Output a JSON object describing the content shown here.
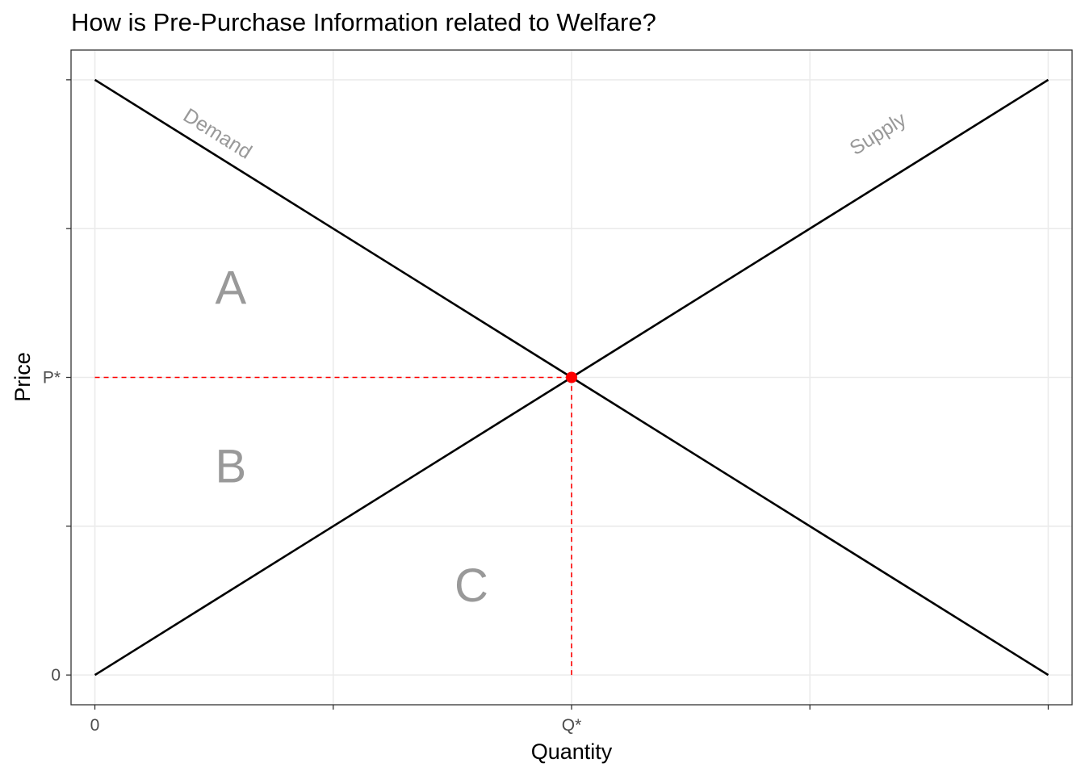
{
  "chart_data": {
    "type": "line",
    "title": "How is Pre-Purchase Information related to Welfare?",
    "xlabel": "Quantity",
    "ylabel": "Price",
    "xlim": [
      -0.1,
      4.1
    ],
    "ylim": [
      -0.2,
      4.2
    ],
    "x_ticks": [
      {
        "value": 0,
        "label": "0"
      },
      {
        "value": 1,
        "label": ""
      },
      {
        "value": 2,
        "label": "Q*"
      },
      {
        "value": 3,
        "label": ""
      },
      {
        "value": 4,
        "label": ""
      }
    ],
    "y_ticks": [
      {
        "value": 0,
        "label": "0"
      },
      {
        "value": 1,
        "label": ""
      },
      {
        "value": 2,
        "label": "P*"
      },
      {
        "value": 3,
        "label": ""
      },
      {
        "value": 4,
        "label": ""
      }
    ],
    "grid": true,
    "series": [
      {
        "name": "Demand",
        "x": [
          0,
          4
        ],
        "y": [
          4,
          0
        ],
        "color": "#000000"
      },
      {
        "name": "Supply",
        "x": [
          0,
          4
        ],
        "y": [
          0,
          4
        ],
        "color": "#000000"
      }
    ],
    "curve_labels": [
      {
        "text": "Demand",
        "x": 0.5,
        "y": 3.6,
        "color": "#999999"
      },
      {
        "text": "Supply",
        "x": 3.3,
        "y": 3.6,
        "color": "#999999"
      }
    ],
    "equilibrium": {
      "x": 2,
      "y": 2,
      "color": "#ff0000"
    },
    "guide_lines": {
      "color": "#ff0000",
      "style": "dashed"
    },
    "area_labels": [
      {
        "text": "A",
        "x": 0.57,
        "y": 2.6
      },
      {
        "text": "B",
        "x": 0.57,
        "y": 1.4
      },
      {
        "text": "C",
        "x": 1.58,
        "y": 0.6
      }
    ]
  }
}
